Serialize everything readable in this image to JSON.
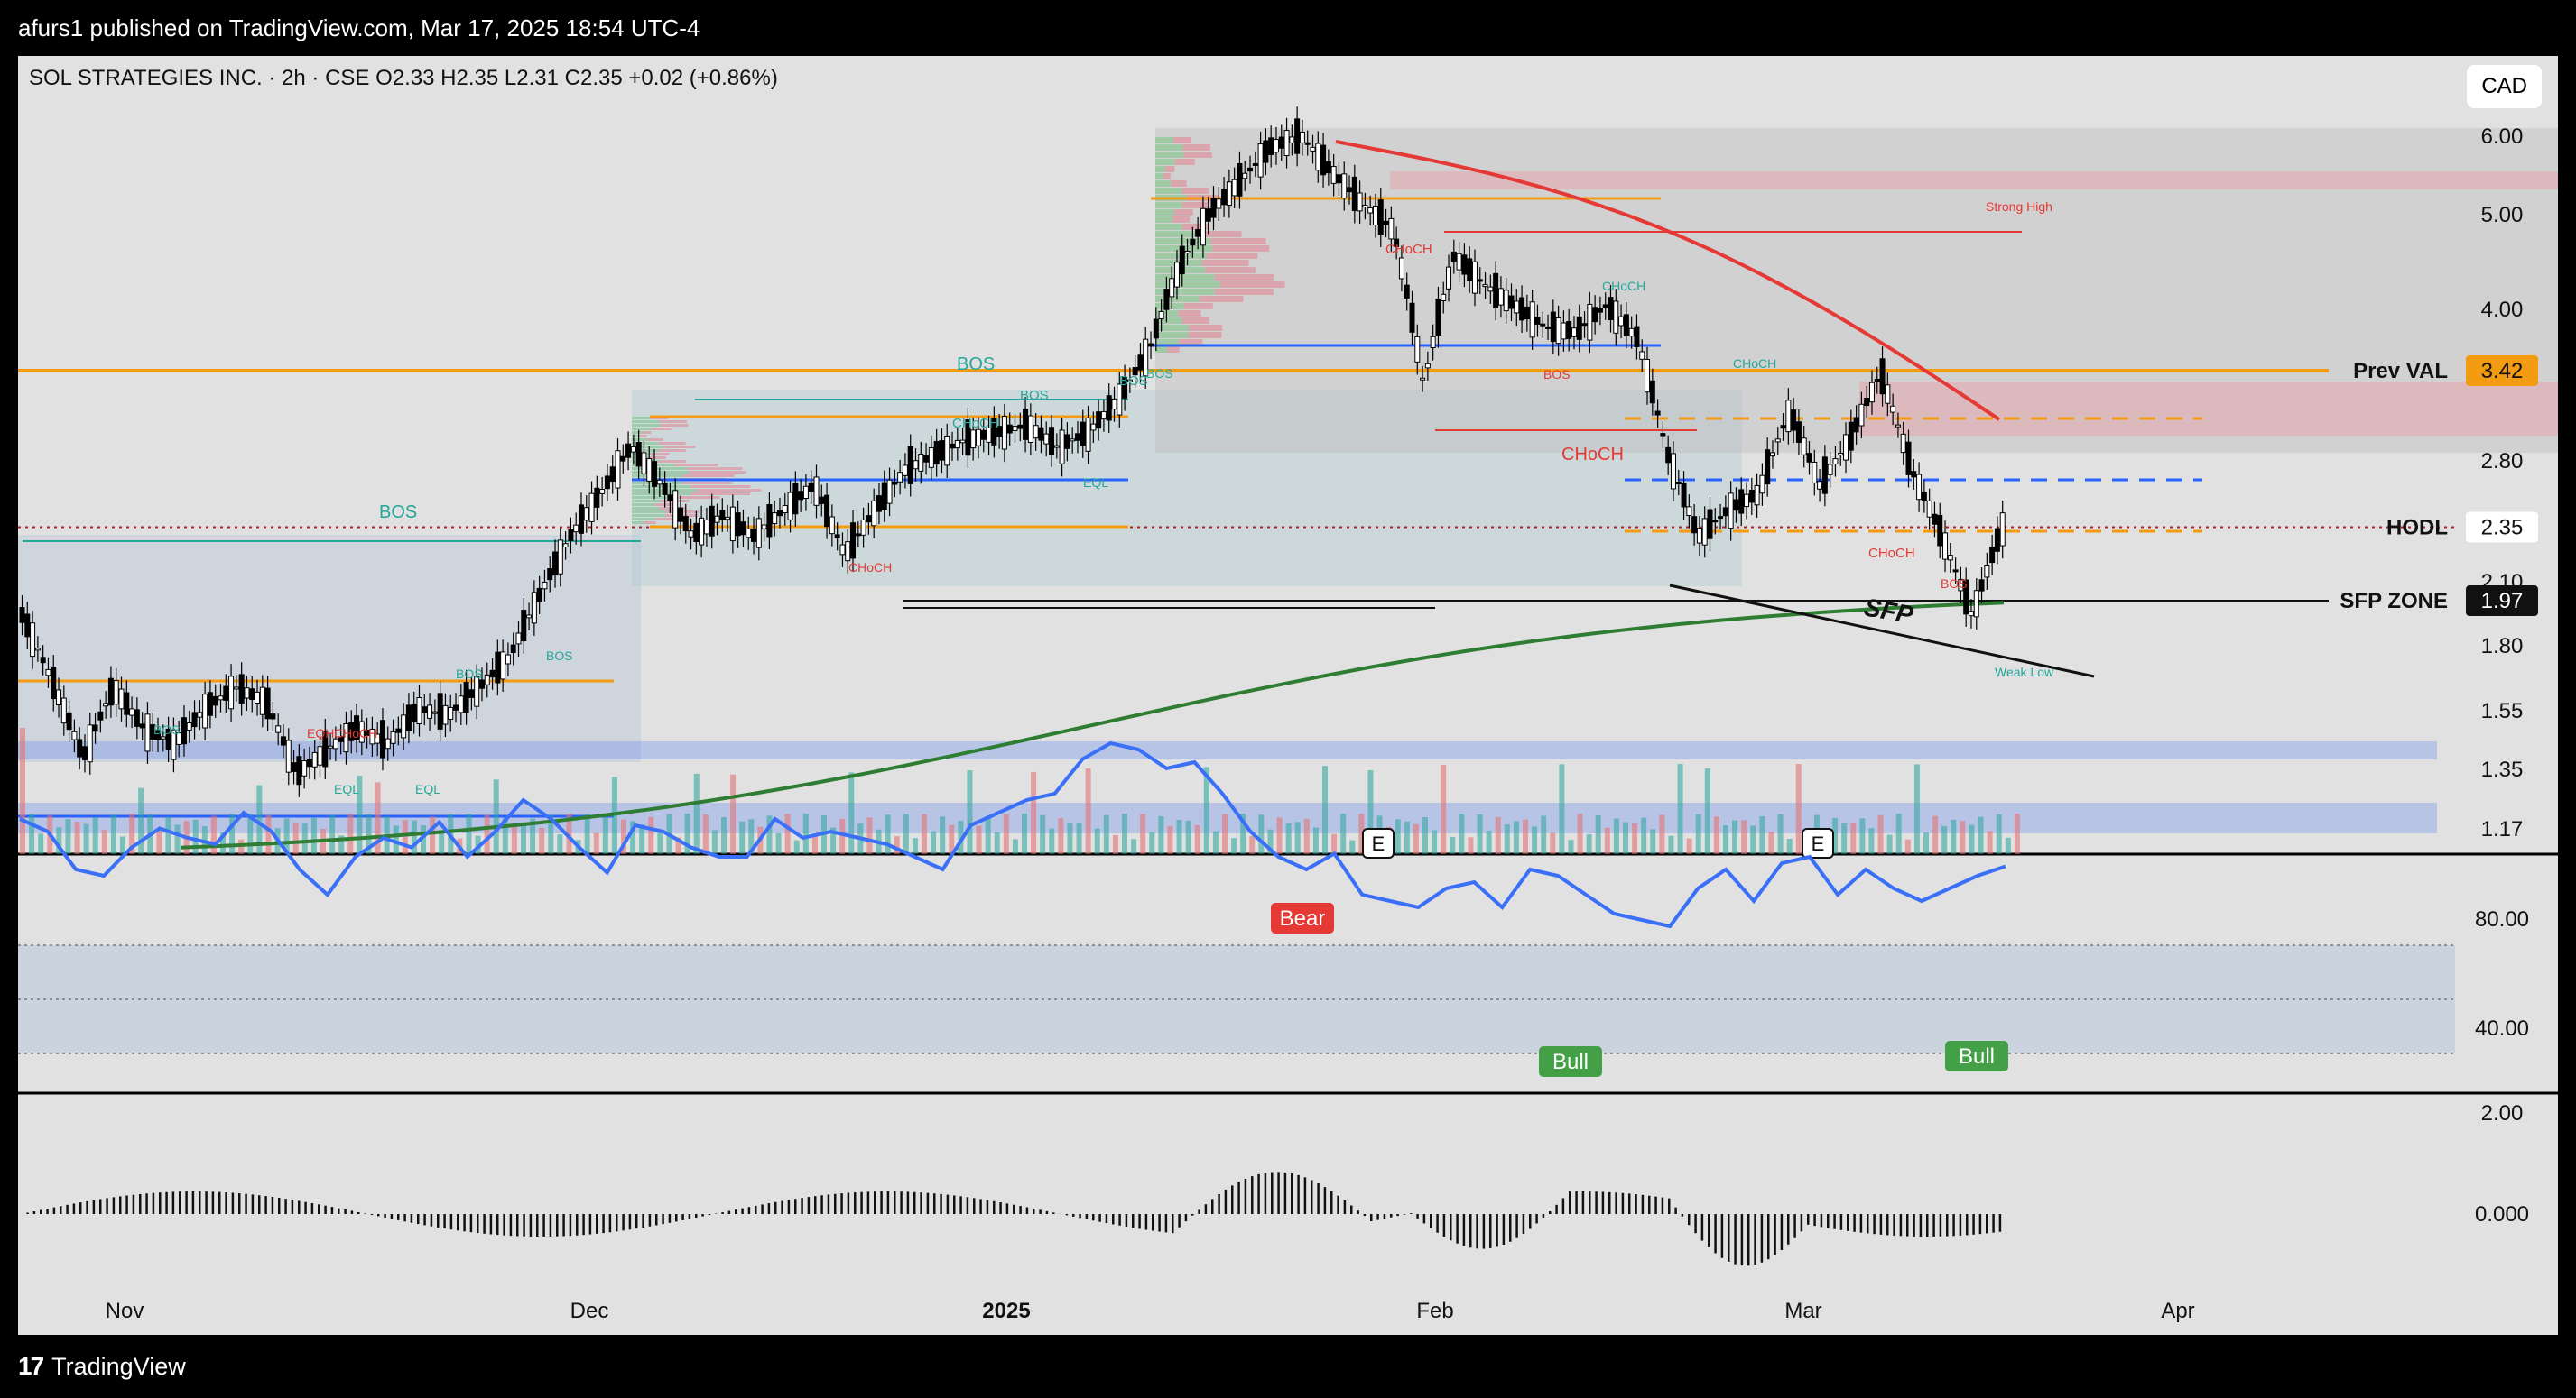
{
  "header": {
    "publisher_line": "afurs1 published on TradingView.com, Mar 17, 2025 18:54 UTC-4"
  },
  "legend": {
    "symbol": "SOL STRATEGIES INC. · 2h · CSE",
    "o_label": "O",
    "o_value": "2.33",
    "h_label": "H",
    "h_value": "2.35",
    "l_label": "L",
    "l_value": "2.31",
    "c_label": "C",
    "c_value": "2.35",
    "change": "+0.02 (+0.86%)"
  },
  "currency_button": "CAD",
  "footer": {
    "brand": "TradingView"
  },
  "colors": {
    "panel_bg": "#e1e1e1",
    "orange": "#f39c12",
    "blue": "#2962ff",
    "red": "#e53935",
    "green": "#2e7d32",
    "teal": "#26a69a",
    "rsi": "#3a6ff7"
  },
  "chart_data": [
    {
      "type": "candlestick",
      "title": "",
      "price_axis_ticks": [
        "6.00",
        "5.00",
        "4.00",
        "3.42",
        "2.80",
        "2.35",
        "2.10",
        "1.97",
        "1.80",
        "1.55",
        "1.35",
        "1.17"
      ],
      "x_axis_labels": [
        "Nov",
        "Dec",
        "2025",
        "Feb",
        "Mar",
        "Apr"
      ],
      "scale": "log",
      "close_path": [
        1.9,
        1.62,
        1.35,
        1.6,
        1.45,
        1.4,
        1.52,
        1.6,
        1.55,
        1.3,
        1.38,
        1.45,
        1.4,
        1.52,
        1.5,
        1.6,
        1.72,
        2.0,
        2.3,
        2.55,
        2.85,
        2.6,
        2.3,
        2.42,
        2.3,
        2.45,
        2.6,
        2.2,
        2.45,
        2.7,
        2.8,
        2.9,
        2.95,
        3.0,
        2.85,
        2.95,
        3.2,
        3.6,
        4.4,
        5.0,
        5.4,
        5.85,
        6.0,
        5.5,
        5.1,
        4.8,
        3.3,
        4.5,
        4.2,
        4.0,
        3.8,
        3.75,
        4.0,
        3.7,
        2.8,
        2.3,
        2.45,
        2.55,
        3.1,
        2.6,
        2.9,
        3.4,
        2.7,
        2.3,
        1.9,
        2.35
      ],
      "horizontal_levels": [
        {
          "label": "Prev VAL",
          "value": "3.42"
        },
        {
          "label": "HODL",
          "value": "2.35"
        },
        {
          "label": "SFP ZONE",
          "value": "1.97"
        }
      ],
      "annotations": [
        "BOS",
        "BOS",
        "BOS",
        "BOS",
        "BOS",
        "BOS",
        "BOS",
        "BOS",
        "BOS",
        "CHoCH",
        "CHoCH",
        "CHoCH",
        "CHoCH",
        "CHoCH",
        "CHoCH",
        "CHoCH",
        "EQH",
        "EQL",
        "EQL",
        "EQL",
        "Strong High",
        "Weak Low",
        "SFP",
        "E",
        "E"
      ],
      "labels": {
        "bos": "BOS",
        "choch": "CHoCH",
        "eqh": "EQH",
        "eql": "EQL",
        "strong_high": "Strong High",
        "weak_low": "Weak Low",
        "sfp": "SFP",
        "earnings": "E"
      }
    },
    {
      "type": "line",
      "title": "",
      "y_ticks": [
        "80.00",
        "40.00"
      ],
      "signals": [
        "Bear",
        "Bull",
        "Bull"
      ],
      "values": [
        64,
        60,
        48,
        46,
        55,
        61,
        58,
        56,
        66,
        60,
        48,
        40,
        52,
        58,
        55,
        63,
        52,
        60,
        70,
        64,
        55,
        47,
        62,
        60,
        55,
        52,
        52,
        64,
        58,
        60,
        58,
        56,
        52,
        48,
        62,
        66,
        70,
        72,
        83,
        88,
        86,
        80,
        82,
        72,
        60,
        52,
        48,
        53,
        40,
        38,
        36,
        42,
        44,
        36,
        48,
        46,
        40,
        34,
        32,
        30,
        42,
        48,
        38,
        50,
        52,
        40,
        48,
        42,
        38,
        42,
        46,
        49
      ]
    },
    {
      "type": "bar",
      "title": "",
      "y_ticks": [
        "2.00",
        "0.000"
      ]
    }
  ]
}
